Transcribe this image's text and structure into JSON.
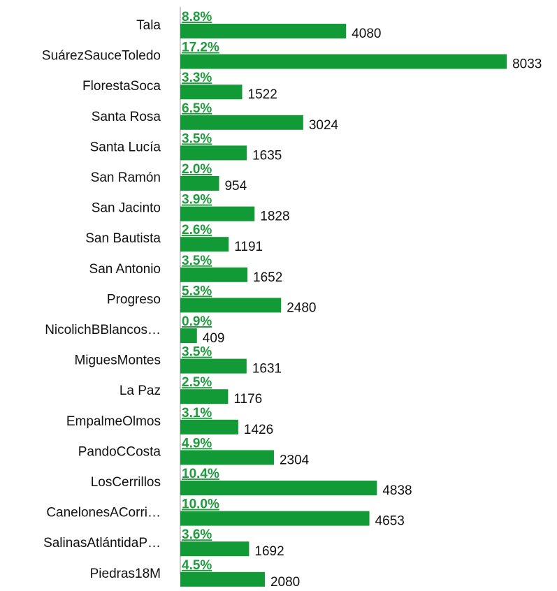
{
  "chart_data": {
    "type": "bar",
    "orientation": "horizontal",
    "categories": [
      "Tala",
      "SuárezSauceToledo",
      "FlorestaSoca",
      "Santa Rosa",
      "Santa Lucía",
      "San Ramón",
      "San Jacinto",
      "San Bautista",
      "San Antonio",
      "Progreso",
      "NicolichBBlancos…",
      "MiguesMontes",
      "La Paz",
      "EmpalmeOlmos",
      "PandoCCosta",
      "LosCerrillos",
      "CanelonesACorri…",
      "SalinasAtlántidaP…",
      "Piedras18M"
    ],
    "values": [
      4080,
      8033,
      1522,
      3024,
      1635,
      954,
      1828,
      1191,
      1652,
      2480,
      409,
      1631,
      1176,
      1426,
      2304,
      4838,
      4653,
      1692,
      2080
    ],
    "share_labels": [
      "8.8%",
      "17.2%",
      "3.3%",
      "6.5%",
      "3.5%",
      "2.0%",
      "3.9%",
      "2.6%",
      "3.5%",
      "5.3%",
      "0.9%",
      "3.5%",
      "2.5%",
      "3.1%",
      "4.9%",
      "10.4%",
      "10.0%",
      "3.6%",
      "4.5%"
    ],
    "color": "#119a36",
    "share_color": "#1f9a3c",
    "xlim": [
      0,
      8100
    ]
  }
}
